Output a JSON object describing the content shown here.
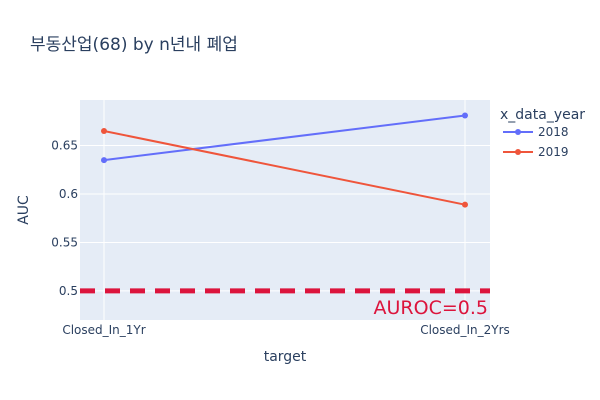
{
  "chart_data": {
    "type": "line",
    "title": "부동산업(68) by n년내 폐업",
    "xlabel": "target",
    "ylabel": "AUC",
    "categories": [
      "Closed_In_1Yr",
      "Closed_In_2Yrs"
    ],
    "ylim": [
      0.47,
      0.697
    ],
    "yticks": [
      0.5,
      0.55,
      0.6,
      0.65
    ],
    "ytick_labels": [
      "0.5",
      "0.55",
      "0.6",
      "0.65"
    ],
    "legend": {
      "title": "x_data_year",
      "placement": "right"
    },
    "series": [
      {
        "name": "2018",
        "values": [
          0.635,
          0.681
        ],
        "color": "#636efa"
      },
      {
        "name": "2019",
        "values": [
          0.665,
          0.589
        ],
        "color": "#ef553b"
      }
    ],
    "reference_line": {
      "y": 0.5,
      "label": "AUROC=0.5",
      "color": "#dc143c",
      "style": "dashed"
    },
    "grid": true,
    "background": "#e5ecf6"
  }
}
